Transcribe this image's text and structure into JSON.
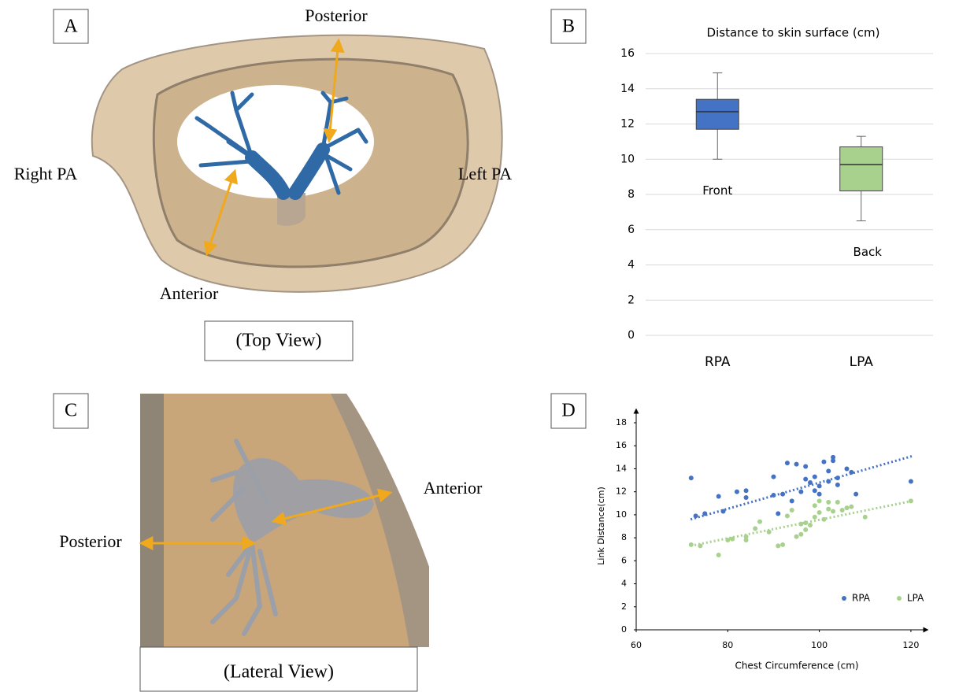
{
  "panel_a": {
    "label": "A",
    "posterior": "Posterior",
    "right": "Right PA",
    "left": "Left PA",
    "anterior": "Anterior",
    "caption": "(Top View)"
  },
  "panel_c": {
    "label": "C",
    "anterior": "Anterior",
    "posterior": "Posterior",
    "caption": "(Lateral View)"
  },
  "chart_data": [
    {
      "type": "box",
      "panel_label": "B",
      "title": "Distance to skin surface (cm)",
      "categories": [
        "RPA",
        "LPA"
      ],
      "colors": [
        "#4472c4",
        "#a9d18e"
      ],
      "min": [
        10,
        6.5
      ],
      "q1": [
        11.7,
        8.2
      ],
      "median": [
        12.7,
        9.7
      ],
      "q3": [
        13.4,
        10.7
      ],
      "max": [
        14.9,
        11.3
      ],
      "box_labels": [
        "Front",
        "Back"
      ],
      "ylim": [
        0,
        16
      ],
      "yticks": [
        0,
        2,
        4,
        6,
        8,
        10,
        12,
        14,
        16
      ],
      "grid": true
    },
    {
      "type": "scatter",
      "panel_label": "D",
      "x_label": "Chest Circumference (cm)",
      "y_label": "Link Distance(cm)",
      "xlim": [
        60,
        125
      ],
      "xticks": [
        60,
        80,
        100,
        120
      ],
      "ylim": [
        0,
        18
      ],
      "yticks": [
        0,
        2,
        4,
        6,
        8,
        10,
        12,
        14,
        16,
        18
      ],
      "legend": "lower right",
      "series": [
        {
          "name": "RPA",
          "color": "#4472c4",
          "x": [
            72,
            73,
            75,
            78,
            79,
            82,
            84,
            84,
            90,
            90,
            91,
            92,
            93,
            95,
            96,
            97,
            97,
            98,
            99,
            99,
            100,
            100,
            101,
            102,
            102,
            103,
            103,
            104,
            104,
            106,
            107,
            108,
            120,
            94
          ],
          "values": [
            13.2,
            9.9,
            10.1,
            11.6,
            10.3,
            12.0,
            11.5,
            12.1,
            13.3,
            11.7,
            10.1,
            11.8,
            14.5,
            14.4,
            12.0,
            13.1,
            14.2,
            12.8,
            13.3,
            12.1,
            12.5,
            11.8,
            14.6,
            13.8,
            12.9,
            14.7,
            15.0,
            13.2,
            12.6,
            14.0,
            13.7,
            11.8,
            12.9,
            11.2
          ],
          "trend": {
            "x": [
              71.9,
              120.3
            ],
            "values": [
              9.6,
              15.1
            ]
          }
        },
        {
          "name": "LPA",
          "color": "#a9d18e",
          "x": [
            72,
            74,
            78,
            80,
            81,
            84,
            84,
            86,
            87,
            89,
            91,
            92,
            93,
            94,
            95,
            96,
            97,
            97,
            98,
            99,
            99,
            100,
            100,
            101,
            102,
            102,
            103,
            104,
            105,
            106,
            107,
            110,
            120,
            96
          ],
          "values": [
            7.4,
            7.3,
            6.5,
            7.8,
            7.9,
            8.1,
            7.8,
            8.8,
            9.4,
            8.5,
            7.3,
            7.4,
            9.9,
            10.4,
            8.1,
            8.3,
            8.7,
            9.3,
            9.1,
            9.8,
            10.8,
            11.2,
            10.2,
            9.6,
            10.5,
            11.1,
            10.3,
            11.1,
            10.4,
            10.6,
            10.7,
            9.8,
            11.2,
            9.2
          ],
          "trend": {
            "x": [
              71.9,
              120.3
            ],
            "values": [
              7.3,
              11.2
            ]
          }
        }
      ]
    }
  ]
}
